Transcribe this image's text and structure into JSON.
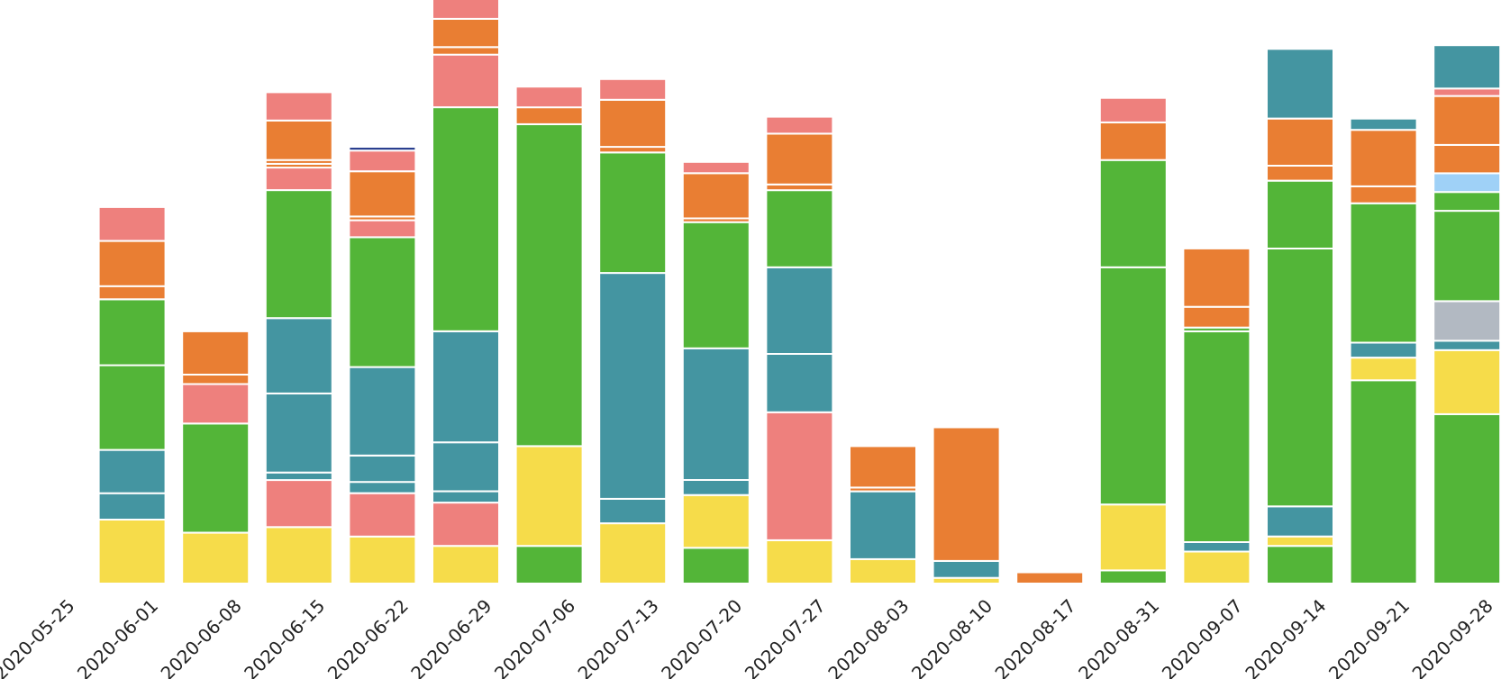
{
  "chart_data": {
    "type": "stacked-bar",
    "title": "",
    "xlabel": "",
    "ylabel": "",
    "ylim": [
      0,
      310
    ],
    "grid": false,
    "legend": "none",
    "categories": [
      "2020-05-25",
      "2020-06-01",
      "2020-06-08",
      "2020-06-15",
      "2020-06-22",
      "2020-06-29",
      "2020-07-06",
      "2020-07-13",
      "2020-07-20",
      "2020-07-27",
      "2020-08-03",
      "2020-08-10",
      "2020-08-17",
      "2020-08-31",
      "2020-09-07",
      "2020-09-14",
      "2020-09-21",
      "2020-09-28"
    ],
    "bars": [
      [],
      [
        {
          "value": 34,
          "color": "#f6dc4a"
        },
        {
          "value": 14,
          "color": "#4495a1"
        },
        {
          "value": 23,
          "color": "#4495a1"
        },
        {
          "value": 45,
          "color": "#53b538"
        },
        {
          "value": 35,
          "color": "#53b538"
        },
        {
          "value": 7,
          "color": "#e97e33"
        },
        {
          "value": 24,
          "color": "#e97e33"
        },
        {
          "value": 18,
          "color": "#ee807d"
        }
      ],
      [
        {
          "value": 27,
          "color": "#f6dc4a"
        },
        {
          "value": 58,
          "color": "#53b538"
        },
        {
          "value": 21,
          "color": "#ee807d"
        },
        {
          "value": 5,
          "color": "#e97e33"
        },
        {
          "value": 23,
          "color": "#e97e33"
        }
      ],
      [
        {
          "value": 30,
          "color": "#f6dc4a"
        },
        {
          "value": 25,
          "color": "#ee807d"
        },
        {
          "value": 4,
          "color": "#4495a1"
        },
        {
          "value": 42,
          "color": "#4495a1"
        },
        {
          "value": 40,
          "color": "#4495a1"
        },
        {
          "value": 68,
          "color": "#53b538"
        },
        {
          "value": 12,
          "color": "#ee807d"
        },
        {
          "value": 2,
          "color": "#e97e33"
        },
        {
          "value": 2,
          "color": "#e97e33"
        },
        {
          "value": 21,
          "color": "#e97e33"
        },
        {
          "value": 15,
          "color": "#ee807d"
        }
      ],
      [
        {
          "value": 25,
          "color": "#f6dc4a"
        },
        {
          "value": 23,
          "color": "#ee807d"
        },
        {
          "value": 6,
          "color": "#4495a1"
        },
        {
          "value": 14,
          "color": "#4495a1"
        },
        {
          "value": 47,
          "color": "#4495a1"
        },
        {
          "value": 69,
          "color": "#53b538"
        },
        {
          "value": 9,
          "color": "#ee807d"
        },
        {
          "value": 2,
          "color": "#e97e33"
        },
        {
          "value": 24,
          "color": "#e97e33"
        },
        {
          "value": 11,
          "color": "#ee807d"
        },
        {
          "value": 2,
          "color": "#2a3f8f"
        }
      ],
      [
        {
          "value": 20,
          "color": "#f6dc4a"
        },
        {
          "value": 23,
          "color": "#ee807d"
        },
        {
          "value": 6,
          "color": "#4495a1"
        },
        {
          "value": 26,
          "color": "#4495a1"
        },
        {
          "value": 59,
          "color": "#4495a1"
        },
        {
          "value": 119,
          "color": "#53b538"
        },
        {
          "value": 28,
          "color": "#ee807d"
        },
        {
          "value": 4,
          "color": "#e97e33"
        },
        {
          "value": 15,
          "color": "#e97e33"
        },
        {
          "value": 12,
          "color": "#ee807d"
        }
      ],
      [
        {
          "value": 20,
          "color": "#53b538"
        },
        {
          "value": 53,
          "color": "#f6dc4a"
        },
        {
          "value": 171,
          "color": "#53b538"
        },
        {
          "value": 9,
          "color": "#e97e33"
        },
        {
          "value": 11,
          "color": "#ee807d"
        }
      ],
      [
        {
          "value": 32,
          "color": "#f6dc4a"
        },
        {
          "value": 13,
          "color": "#4495a1"
        },
        {
          "value": 120,
          "color": "#4495a1"
        },
        {
          "value": 64,
          "color": "#53b538"
        },
        {
          "value": 3,
          "color": "#e97e33"
        },
        {
          "value": 25,
          "color": "#e97e33"
        },
        {
          "value": 11,
          "color": "#ee807d"
        }
      ],
      [
        {
          "value": 19,
          "color": "#53b538"
        },
        {
          "value": 28,
          "color": "#f6dc4a"
        },
        {
          "value": 8,
          "color": "#4495a1"
        },
        {
          "value": 70,
          "color": "#4495a1"
        },
        {
          "value": 67,
          "color": "#53b538"
        },
        {
          "value": 2,
          "color": "#e97e33"
        },
        {
          "value": 24,
          "color": "#e97e33"
        },
        {
          "value": 6,
          "color": "#ee807d"
        }
      ],
      [
        {
          "value": 23,
          "color": "#f6dc4a"
        },
        {
          "value": 68,
          "color": "#ee807d"
        },
        {
          "value": 31,
          "color": "#4495a1"
        },
        {
          "value": 46,
          "color": "#4495a1"
        },
        {
          "value": 41,
          "color": "#53b538"
        },
        {
          "value": 3,
          "color": "#e97e33"
        },
        {
          "value": 27,
          "color": "#e97e33"
        },
        {
          "value": 9,
          "color": "#ee807d"
        }
      ],
      [
        {
          "value": 13,
          "color": "#f6dc4a"
        },
        {
          "value": 36,
          "color": "#4495a1"
        },
        {
          "value": 2,
          "color": "#e97e33"
        },
        {
          "value": 22,
          "color": "#e97e33"
        }
      ],
      [
        {
          "value": 3,
          "color": "#f6dc4a"
        },
        {
          "value": 9,
          "color": "#4495a1"
        },
        {
          "value": 71,
          "color": "#e97e33"
        }
      ],
      [
        {
          "value": 6,
          "color": "#e97e33"
        }
      ],
      [
        {
          "value": 7,
          "color": "#53b538"
        },
        {
          "value": 35,
          "color": "#f6dc4a"
        },
        {
          "value": 126,
          "color": "#53b538"
        },
        {
          "value": 57,
          "color": "#53b538"
        },
        {
          "value": 20,
          "color": "#e97e33"
        },
        {
          "value": 13,
          "color": "#ee807d"
        }
      ],
      [
        {
          "value": 17,
          "color": "#f6dc4a"
        },
        {
          "value": 5,
          "color": "#4495a1"
        },
        {
          "value": 112,
          "color": "#53b538"
        },
        {
          "value": 2,
          "color": "#53b538"
        },
        {
          "value": 11,
          "color": "#e97e33"
        },
        {
          "value": 31,
          "color": "#e97e33"
        }
      ],
      [
        {
          "value": 20,
          "color": "#53b538"
        },
        {
          "value": 5,
          "color": "#f6dc4a"
        },
        {
          "value": 16,
          "color": "#4495a1"
        },
        {
          "value": 137,
          "color": "#53b538"
        },
        {
          "value": 36,
          "color": "#53b538"
        },
        {
          "value": 8,
          "color": "#e97e33"
        },
        {
          "value": 25,
          "color": "#e97e33"
        },
        {
          "value": 37,
          "color": "#4495a1"
        }
      ],
      [
        {
          "value": 108,
          "color": "#53b538"
        },
        {
          "value": 12,
          "color": "#f6dc4a"
        },
        {
          "value": 8,
          "color": "#4495a1"
        },
        {
          "value": 74,
          "color": "#53b538"
        },
        {
          "value": 9,
          "color": "#e97e33"
        },
        {
          "value": 30,
          "color": "#e97e33"
        },
        {
          "value": 6,
          "color": "#4495a1"
        }
      ],
      [
        {
          "value": 90,
          "color": "#53b538"
        },
        {
          "value": 34,
          "color": "#f6dc4a"
        },
        {
          "value": 5,
          "color": "#4495a1"
        },
        {
          "value": 21,
          "color": "#b2b9c2"
        },
        {
          "value": 48,
          "color": "#53b538"
        },
        {
          "value": 10,
          "color": "#53b538"
        },
        {
          "value": 10,
          "color": "#9fd1f7"
        },
        {
          "value": 15,
          "color": "#e97e33"
        },
        {
          "value": 26,
          "color": "#e97e33"
        },
        {
          "value": 4,
          "color": "#ee807d"
        },
        {
          "value": 23,
          "color": "#4495a1"
        }
      ]
    ]
  }
}
